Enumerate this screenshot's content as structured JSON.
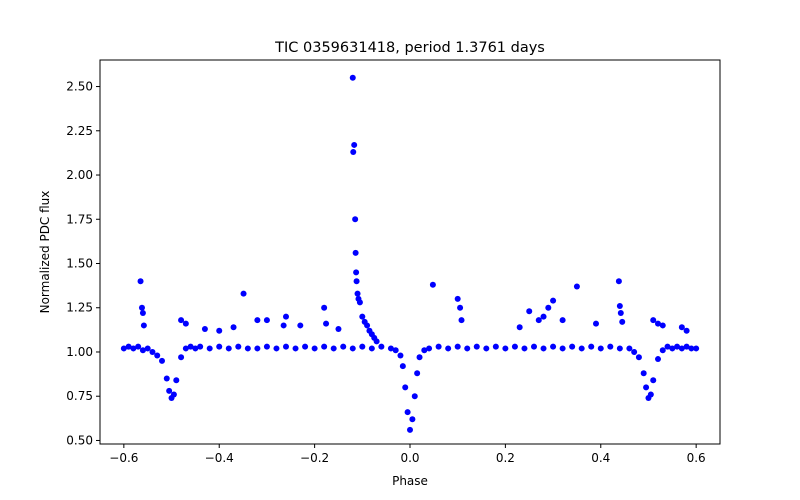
{
  "chart_data": {
    "type": "scatter",
    "title": "TIC 0359631418, period 1.3761 days",
    "xlabel": "Phase",
    "ylabel": "Normalized PDC flux",
    "xlim": [
      -0.65,
      0.65
    ],
    "ylim": [
      0.48,
      2.65
    ],
    "xticks": [
      -0.6,
      -0.4,
      -0.2,
      0.0,
      0.2,
      0.4,
      0.6
    ],
    "xtick_labels": [
      "−0.6",
      "−0.4",
      "−0.2",
      "0.0",
      "0.2",
      "0.4",
      "0.6"
    ],
    "yticks": [
      0.5,
      0.75,
      1.0,
      1.25,
      1.5,
      1.75,
      2.0,
      2.25,
      2.5
    ],
    "ytick_labels": [
      "0.50",
      "0.75",
      "1.00",
      "1.25",
      "1.50",
      "1.75",
      "2.00",
      "2.25",
      "2.50"
    ],
    "grid": false,
    "marker_color": "#0000ff",
    "series": [
      {
        "marker": "o",
        "color": "#0000ff",
        "x": [
          -0.6,
          -0.59,
          -0.58,
          -0.57,
          -0.56,
          -0.55,
          -0.54,
          -0.53,
          -0.52,
          -0.51,
          -0.505,
          -0.5,
          -0.495,
          -0.49,
          -0.48,
          -0.47,
          -0.46,
          -0.45,
          -0.44,
          -0.42,
          -0.4,
          -0.38,
          -0.36,
          -0.34,
          -0.32,
          -0.3,
          -0.28,
          -0.26,
          -0.24,
          -0.22,
          -0.2,
          -0.18,
          -0.16,
          -0.14,
          -0.12,
          -0.1,
          -0.08,
          -0.06,
          -0.04,
          -0.03,
          -0.02,
          -0.015,
          -0.01,
          -0.005,
          0.0,
          0.005,
          0.01,
          0.015,
          0.02,
          0.03,
          0.04,
          0.06,
          0.08,
          0.1,
          0.12,
          0.14,
          0.16,
          0.18,
          0.2,
          0.22,
          0.24,
          0.26,
          0.28,
          0.3,
          0.32,
          0.34,
          0.36,
          0.38,
          0.4,
          0.42,
          0.44,
          0.46,
          0.47,
          0.48,
          0.49,
          0.495,
          0.5,
          0.505,
          0.51,
          0.52,
          0.53,
          0.54,
          0.55,
          0.56,
          0.57,
          0.58,
          0.59,
          0.6,
          -0.565,
          -0.562,
          -0.56,
          -0.558,
          -0.349,
          -0.3,
          -0.265,
          -0.26,
          -0.18,
          -0.176,
          -0.12,
          -0.117,
          -0.119,
          -0.115,
          -0.114,
          -0.113,
          -0.112,
          -0.11,
          -0.108,
          -0.105,
          -0.1,
          -0.095,
          -0.09,
          -0.085,
          -0.08,
          -0.075,
          -0.07,
          0.048,
          0.1,
          0.105,
          0.108,
          0.25,
          0.27,
          0.28,
          0.29,
          0.3,
          0.35,
          0.438,
          0.44,
          0.442,
          0.445,
          0.51,
          0.52,
          0.53,
          -0.48,
          -0.47,
          -0.43,
          -0.4,
          -0.37,
          -0.32,
          -0.23,
          -0.15,
          0.23,
          0.32,
          0.39,
          0.57,
          0.58
        ],
        "y": [
          1.02,
          1.03,
          1.02,
          1.03,
          1.01,
          1.02,
          1.0,
          0.98,
          0.95,
          0.85,
          0.78,
          0.74,
          0.76,
          0.84,
          0.97,
          1.02,
          1.03,
          1.02,
          1.03,
          1.02,
          1.03,
          1.02,
          1.03,
          1.02,
          1.02,
          1.03,
          1.02,
          1.03,
          1.02,
          1.03,
          1.02,
          1.03,
          1.02,
          1.03,
          1.02,
          1.03,
          1.02,
          1.03,
          1.02,
          1.01,
          0.98,
          0.92,
          0.8,
          0.66,
          0.56,
          0.62,
          0.75,
          0.88,
          0.97,
          1.01,
          1.02,
          1.03,
          1.02,
          1.03,
          1.02,
          1.03,
          1.02,
          1.03,
          1.02,
          1.03,
          1.02,
          1.03,
          1.02,
          1.03,
          1.02,
          1.03,
          1.02,
          1.03,
          1.02,
          1.03,
          1.02,
          1.02,
          1.0,
          0.97,
          0.88,
          0.8,
          0.74,
          0.76,
          0.84,
          0.96,
          1.01,
          1.03,
          1.02,
          1.03,
          1.02,
          1.03,
          1.02,
          1.02,
          1.4,
          1.25,
          1.22,
          1.15,
          1.33,
          1.18,
          1.15,
          1.2,
          1.25,
          1.16,
          2.55,
          2.17,
          2.13,
          1.75,
          1.56,
          1.45,
          1.4,
          1.33,
          1.3,
          1.28,
          1.2,
          1.17,
          1.15,
          1.12,
          1.1,
          1.08,
          1.06,
          1.38,
          1.3,
          1.25,
          1.18,
          1.23,
          1.18,
          1.2,
          1.25,
          1.29,
          1.37,
          1.4,
          1.26,
          1.22,
          1.17,
          1.18,
          1.16,
          1.15,
          1.18,
          1.16,
          1.13,
          1.12,
          1.14,
          1.18,
          1.15,
          1.13,
          1.14,
          1.18,
          1.16,
          1.14,
          1.12
        ]
      }
    ]
  }
}
